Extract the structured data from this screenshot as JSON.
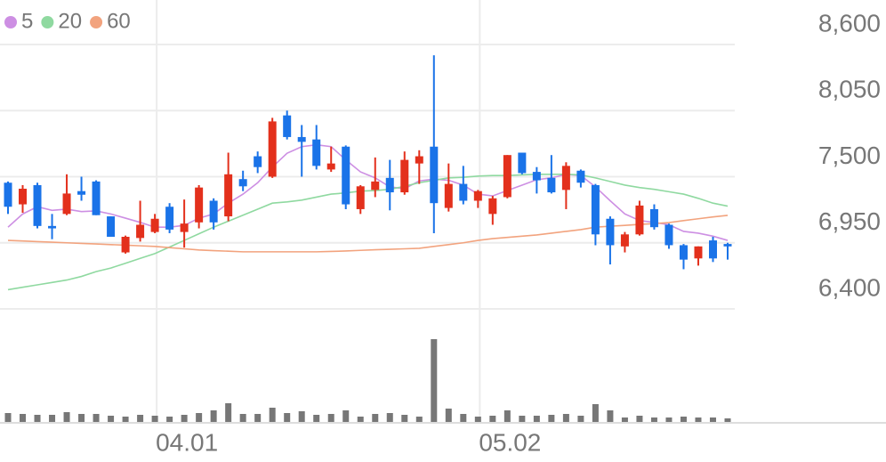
{
  "chart_data": {
    "type": "candlestick",
    "categories": [
      null,
      null,
      null,
      null,
      null,
      null,
      null,
      null,
      null,
      null,
      "04.01",
      null,
      null,
      null,
      null,
      null,
      null,
      null,
      null,
      null,
      null,
      null,
      null,
      null,
      null,
      null,
      null,
      null,
      null,
      null,
      null,
      null,
      "05.02",
      null,
      null,
      null,
      null,
      null,
      null,
      null,
      null,
      null,
      null,
      null,
      null,
      null,
      null,
      null,
      null,
      null
    ],
    "open": [
      7450,
      7270,
      7430,
      7090,
      7190,
      7380,
      7460,
      7170,
      6870,
      6990,
      7040,
      7250,
      7040,
      7120,
      7300,
      7170,
      7480,
      7670,
      7500,
      8010,
      7830,
      7810,
      7560,
      7750,
      7230,
      7390,
      7490,
      7370,
      7610,
      7750,
      7240,
      7440,
      7300,
      7190,
      7330,
      7700,
      7540,
      7490,
      7390,
      7550,
      7430,
      7150,
      6920,
      7020,
      7230,
      7100,
      6930,
      6820,
      6970,
      6940
    ],
    "high": [
      7460,
      7430,
      7450,
      7190,
      7520,
      7500,
      7470,
      7170,
      7010,
      7300,
      7190,
      7280,
      7310,
      7430,
      7320,
      7700,
      7550,
      7710,
      7990,
      8050,
      7930,
      7930,
      7750,
      7760,
      7430,
      7660,
      7640,
      7710,
      7720,
      8510,
      7610,
      7590,
      7390,
      7340,
      7680,
      7700,
      7580,
      7680,
      7620,
      7560,
      7440,
      7170,
      7040,
      7300,
      7270,
      7110,
      6940,
      6920,
      7000,
      6950
    ],
    "low": [
      7190,
      7200,
      7070,
      6980,
      7180,
      7300,
      7180,
      7000,
      6860,
      6960,
      7030,
      7030,
      6910,
      7070,
      7060,
      7130,
      7380,
      7530,
      7490,
      7810,
      7500,
      7560,
      7540,
      7230,
      7190,
      7330,
      7220,
      7350,
      7440,
      7030,
      7210,
      7270,
      7240,
      7100,
      7320,
      7520,
      7360,
      7360,
      7230,
      7410,
      6930,
      6770,
      6870,
      7010,
      7060,
      6900,
      6730,
      6760,
      6790,
      6810
    ],
    "close": [
      7250,
      7400,
      7090,
      7070,
      7360,
      7350,
      7180,
      7000,
      7000,
      7100,
      7150,
      7060,
      7110,
      7410,
      7120,
      7520,
      7420,
      7580,
      7960,
      7830,
      7790,
      7590,
      7610,
      7270,
      7420,
      7460,
      7370,
      7640,
      7670,
      7280,
      7440,
      7300,
      7380,
      7320,
      7680,
      7530,
      7470,
      7370,
      7590,
      7450,
      7020,
      6930,
      7020,
      7260,
      7080,
      6930,
      6810,
      6920,
      6820,
      6920
    ],
    "up_color": "#e3301c",
    "down_color": "#1a73e8",
    "series": [
      {
        "name": "5",
        "color": "#cd8fe3",
        "values": [
          7080,
          7190,
          7250,
          7220,
          7230,
          7210,
          7215,
          7190,
          7155,
          7120,
          7080,
          7080,
          7095,
          7155,
          7190,
          7280,
          7355,
          7450,
          7580,
          7695,
          7750,
          7765,
          7750,
          7640,
          7540,
          7490,
          7415,
          7400,
          7465,
          7480,
          7470,
          7430,
          7355,
          7340,
          7385,
          7430,
          7475,
          7490,
          7520,
          7510,
          7415,
          7300,
          7190,
          7135,
          7120,
          7100,
          7045,
          7030,
          7005,
          6970
        ]
      },
      {
        "name": "20",
        "color": "#8fd9a0",
        "values": [
          6560,
          6580,
          6600,
          6620,
          6640,
          6670,
          6710,
          6740,
          6780,
          6820,
          6860,
          6915,
          6970,
          7025,
          7080,
          7130,
          7180,
          7230,
          7280,
          7290,
          7305,
          7330,
          7355,
          7365,
          7380,
          7385,
          7395,
          7420,
          7450,
          7470,
          7490,
          7495,
          7505,
          7510,
          7510,
          7515,
          7520,
          7520,
          7520,
          7515,
          7490,
          7460,
          7430,
          7410,
          7395,
          7375,
          7355,
          7320,
          7280,
          7255
        ]
      },
      {
        "name": "60",
        "color": "#f2a37e",
        "values": [
          6970,
          6965,
          6960,
          6955,
          6950,
          6945,
          6940,
          6935,
          6930,
          6925,
          6920,
          6910,
          6900,
          6890,
          6885,
          6880,
          6875,
          6875,
          6875,
          6875,
          6875,
          6875,
          6878,
          6882,
          6887,
          6892,
          6896,
          6900,
          6904,
          6920,
          6935,
          6950,
          6970,
          6985,
          6995,
          7005,
          7015,
          7030,
          7045,
          7060,
          7080,
          7088,
          7095,
          7103,
          7110,
          7118,
          7135,
          7150,
          7165,
          7178
        ]
      }
    ],
    "volume": {
      "color": "#777777",
      "values": [
        10,
        9,
        8,
        8,
        11,
        9,
        9,
        7,
        6,
        8,
        7,
        6,
        8,
        10,
        13,
        21,
        9,
        9,
        16,
        10,
        12,
        8,
        9,
        13,
        6,
        9,
        10,
        8,
        6,
        93,
        15,
        9,
        6,
        7,
        13,
        7,
        7,
        8,
        9,
        7,
        20,
        13,
        5,
        7,
        5,
        5,
        6,
        5,
        5,
        4
      ]
    },
    "ylim": [
      6400,
      8600
    ],
    "yticks": [
      {
        "value": 6400,
        "label": "6,400"
      },
      {
        "value": 6950,
        "label": "6,950"
      },
      {
        "value": 7500,
        "label": "7,500"
      },
      {
        "value": 8050,
        "label": "8,050"
      },
      {
        "value": 8600,
        "label": "8,600"
      }
    ],
    "grid": true
  }
}
